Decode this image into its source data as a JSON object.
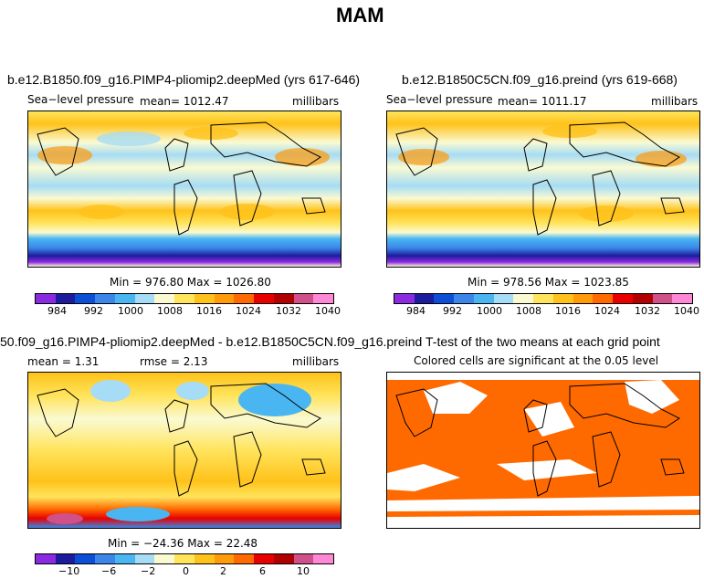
{
  "figure_title": "MAM",
  "panels": {
    "top_left": {
      "title": "b.e12.B1850.f09_g16.PIMP4-pliomip2.deepMed (yrs 617-646)",
      "variable": "Sea−level  pressure",
      "mean": "mean=  1012.47",
      "units": "millibars",
      "minmax": "Min = 976.80 Max = 1026.80"
    },
    "top_right": {
      "title": "b.e12.B1850C5CN.f09_g16.preind (yrs 619-668)",
      "variable": "Sea−level  pressure",
      "mean": "mean=  1011.17",
      "units": "millibars",
      "minmax": "Min = 978.56 Max = 1023.85"
    },
    "bottom_left": {
      "title": "50.f09_g16.PIMP4-pliomip2.deepMed - b.e12.B1850C5CN.f09_g16.preind",
      "mean": "mean =    1.31",
      "rmse": "rmse =    2.13",
      "units": "millibars",
      "minmax": "Min = −24.36 Max =  22.48"
    },
    "bottom_right": {
      "title": "T-test of the two means at each grid point",
      "subtitle": "Colored cells are significant at the 0.05 level"
    }
  },
  "colorbars": {
    "abs_labels": [
      "984",
      "992",
      "1000",
      "1008",
      "1016",
      "1024",
      "1032",
      "1040"
    ],
    "diff_labels": [
      "−10",
      "−6",
      "−2",
      "0",
      "2",
      "6",
      "10"
    ],
    "colors": [
      "#8a2be2",
      "#1c1c9c",
      "#0a4fd6",
      "#3b86e8",
      "#49b6f2",
      "#a6dcf5",
      "#fafad2",
      "#ffe45c",
      "#ffc21a",
      "#ff9a0a",
      "#ff6a00",
      "#e80000",
      "#b00000",
      "#d0508a",
      "#ff88d6"
    ]
  }
}
